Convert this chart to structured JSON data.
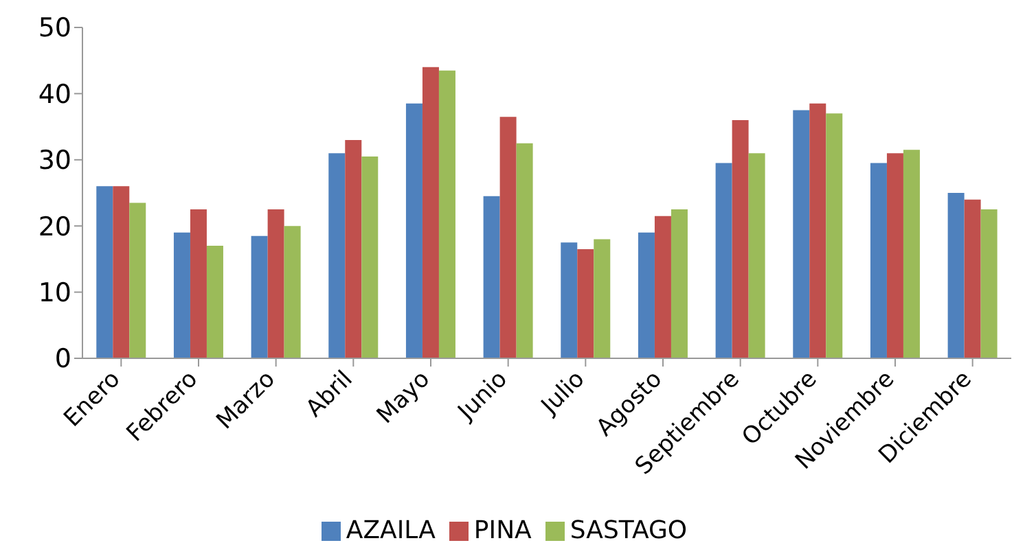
{
  "chart_data": {
    "type": "bar",
    "categories": [
      "Enero",
      "Febrero",
      "Marzo",
      "Abril",
      "Mayo",
      "Junio",
      "Julio",
      "Agosto",
      "Septiembre",
      "Octubre",
      "Noviembre",
      "Diciembre"
    ],
    "series": [
      {
        "name": "AZAILA",
        "color": "#4f81bd",
        "values": [
          26,
          19,
          18.5,
          31,
          38.5,
          24.5,
          17.5,
          19,
          29.5,
          37.5,
          29.5,
          25
        ]
      },
      {
        "name": "PINA",
        "color": "#c0504d",
        "values": [
          26,
          22.5,
          22.5,
          33,
          44,
          36.5,
          16.5,
          21.5,
          36,
          38.5,
          31,
          24
        ]
      },
      {
        "name": "SASTAGO",
        "color": "#9bbb59",
        "values": [
          23.5,
          17,
          20,
          30.5,
          43.5,
          32.5,
          18,
          22.5,
          31,
          37,
          31.5,
          22.5
        ]
      }
    ],
    "ylim": [
      0,
      50
    ],
    "yticks": [
      0,
      10,
      20,
      30,
      40,
      50
    ],
    "grid": false,
    "legend": "bottom"
  }
}
